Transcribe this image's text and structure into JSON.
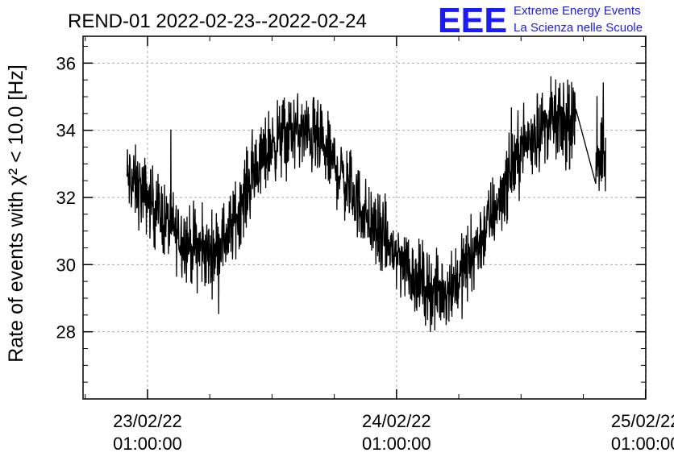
{
  "header": {
    "title": "REND-01 2022-02-23--2022-02-24",
    "logo_text": "EEE",
    "org_line1": "Extreme Energy Events",
    "org_line2": "La Scienza nelle Scuole",
    "brand_color": "#1a1aff"
  },
  "chart_data": {
    "type": "line",
    "title": "REND-01 2022-02-23--2022-02-24",
    "ylabel": "Rate of events with χ² < 10.0 [Hz]",
    "xlabel": "",
    "ylim": [
      26,
      36.8
    ],
    "xlim": [
      -0.259,
      2.001
    ],
    "x_unit": "days since 23/02/22 01:00:00",
    "grid": true,
    "line_color": "#000000",
    "y_ticks": [
      28,
      30,
      32,
      34,
      36
    ],
    "x_ticks": [
      {
        "value": 0,
        "line1": "23/02/22",
        "line2": "01:00:00"
      },
      {
        "value": 1,
        "line1": "24/02/22",
        "line2": "01:00:00"
      },
      {
        "value": 2,
        "line1": "25/02/22",
        "line2": "01:00:00"
      }
    ],
    "series": [
      {
        "name": "rate",
        "x": [
          -0.083,
          0.0,
          0.083,
          0.167,
          0.25,
          0.333,
          0.417,
          0.5,
          0.583,
          0.667,
          0.75,
          0.833,
          0.917,
          1.0,
          1.083,
          1.167,
          1.25,
          1.333,
          1.417,
          1.5,
          1.583,
          1.625,
          1.708,
          1.725,
          1.8,
          1.84
        ],
        "y": [
          32.6,
          32.0,
          31.2,
          30.6,
          30.3,
          31.0,
          32.6,
          33.6,
          34.0,
          33.8,
          33.0,
          32.0,
          31.0,
          30.3,
          29.6,
          29.1,
          29.6,
          30.7,
          32.0,
          33.5,
          34.1,
          34.3,
          34.0,
          34.6,
          33.4,
          33.2
        ],
        "noise_amplitude_hz": 1.0
      }
    ]
  }
}
